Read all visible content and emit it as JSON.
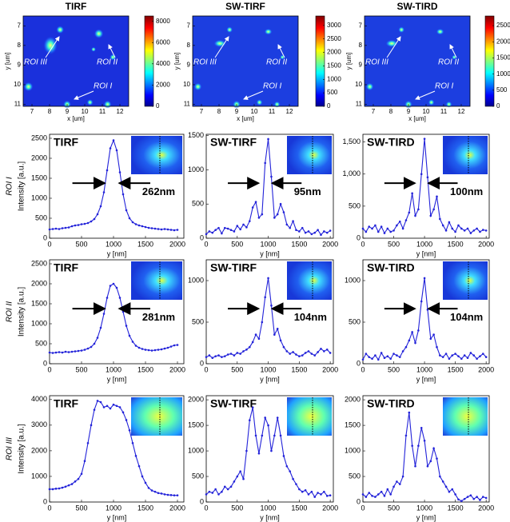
{
  "chart_data": [
    {
      "type": "image",
      "title": "TIRF",
      "xlabel": "x [um]",
      "ylabel": "y [um]",
      "xlim": [
        6.5,
        12.5
      ],
      "xticks": [
        7,
        8,
        9,
        10,
        11,
        12
      ],
      "ylim": [
        6.5,
        11.1
      ],
      "yticks": [
        7,
        8,
        9,
        10,
        11
      ],
      "y_inverted": true,
      "clim": [
        0,
        8500
      ],
      "cticks": [
        0,
        2000,
        4000,
        6000,
        8000
      ],
      "annotations": [
        "ROI III",
        "ROI II",
        "ROI I"
      ]
    },
    {
      "type": "image",
      "title": "SW-TIRF",
      "xlabel": "x [um]",
      "ylabel": "y [um]",
      "xlim": [
        6.5,
        12.5
      ],
      "xticks": [
        7,
        8,
        9,
        10,
        11,
        12
      ],
      "ylim": [
        6.5,
        11.1
      ],
      "yticks": [
        7,
        8,
        9,
        10,
        11
      ],
      "y_inverted": true,
      "clim": [
        0,
        3350
      ],
      "cticks": [
        0,
        500,
        1000,
        1500,
        2000,
        2500,
        3000
      ],
      "annotations": [
        "ROI III",
        "ROI II",
        "ROI I"
      ]
    },
    {
      "type": "image",
      "title": "SW-TIRD",
      "xlabel": "x [um]",
      "ylabel": "y [um]",
      "xlim": [
        6.5,
        12.5
      ],
      "xticks": [
        7,
        8,
        9,
        10,
        11,
        12
      ],
      "ylim": [
        6.5,
        11.1
      ],
      "yticks": [
        7,
        8,
        9,
        10,
        11
      ],
      "y_inverted": true,
      "clim": [
        0,
        2800
      ],
      "cticks": [
        0,
        500,
        1000,
        1500,
        2000,
        2500
      ],
      "annotations": [
        "ROI III",
        "ROI II",
        "ROI I"
      ]
    },
    {
      "type": "line",
      "title": "TIRF",
      "row_label": "ROI I",
      "ylabel": "Intensity [a.u.]",
      "xlabel": "y [nm]",
      "fwhm_label": "262nm",
      "x": [
        0,
        50,
        100,
        150,
        200,
        250,
        300,
        350,
        400,
        450,
        500,
        550,
        600,
        650,
        700,
        750,
        800,
        850,
        900,
        950,
        1000,
        1050,
        1100,
        1150,
        1200,
        1250,
        1300,
        1350,
        1400,
        1450,
        1500,
        1550,
        1600,
        1650,
        1700,
        1750,
        1800,
        1850,
        1900,
        1950,
        2000
      ],
      "series": [
        {
          "color": "#2323d9",
          "values": [
            220,
            230,
            240,
            230,
            250,
            260,
            270,
            300,
            320,
            330,
            350,
            360,
            380,
            420,
            480,
            600,
            800,
            1150,
            1700,
            2250,
            2450,
            2200,
            1650,
            1100,
            700,
            500,
            400,
            350,
            320,
            300,
            280,
            260,
            250,
            240,
            230,
            220,
            230,
            220,
            210,
            200,
            210
          ]
        }
      ],
      "xlim": [
        0,
        2100
      ],
      "xticks": [
        0,
        500,
        1000,
        1500,
        2000
      ],
      "ylim": [
        0,
        2600
      ],
      "yticks": [
        0,
        500,
        1000,
        1500,
        2000,
        2500
      ]
    },
    {
      "type": "line",
      "title": "SW-TIRF",
      "xlabel": "y [nm]",
      "fwhm_label": "95nm",
      "x": [
        0,
        50,
        100,
        150,
        200,
        250,
        300,
        350,
        400,
        450,
        500,
        550,
        600,
        650,
        700,
        750,
        800,
        850,
        900,
        950,
        1000,
        1050,
        1100,
        1150,
        1200,
        1250,
        1300,
        1350,
        1400,
        1450,
        1500,
        1550,
        1600,
        1650,
        1700,
        1750,
        1800,
        1850,
        1900,
        1950,
        2000
      ],
      "series": [
        {
          "color": "#2323d9",
          "values": [
            60,
            100,
            80,
            120,
            150,
            70,
            150,
            140,
            120,
            100,
            180,
            130,
            200,
            160,
            250,
            450,
            530,
            300,
            350,
            1100,
            1450,
            900,
            300,
            350,
            500,
            380,
            200,
            150,
            250,
            120,
            100,
            150,
            80,
            100,
            60,
            80,
            120,
            50,
            100,
            80,
            110
          ]
        }
      ],
      "xlim": [
        0,
        2050
      ],
      "xticks": [
        0,
        500,
        1000,
        1500,
        2000
      ],
      "ylim": [
        0,
        1520
      ],
      "yticks": [
        0,
        500,
        1000,
        1500
      ]
    },
    {
      "type": "line",
      "title": "SW-TIRD",
      "xlabel": "y [nm]",
      "fwhm_label": "100nm",
      "x": [
        0,
        50,
        100,
        150,
        200,
        250,
        300,
        350,
        400,
        450,
        500,
        550,
        600,
        650,
        700,
        750,
        800,
        850,
        900,
        950,
        1000,
        1050,
        1100,
        1150,
        1200,
        1250,
        1300,
        1350,
        1400,
        1450,
        1500,
        1550,
        1600,
        1650,
        1700,
        1750,
        1800,
        1850,
        1900,
        1950,
        2000
      ],
      "series": [
        {
          "color": "#2323d9",
          "values": [
            150,
            100,
            180,
            150,
            200,
            100,
            180,
            80,
            150,
            100,
            120,
            200,
            260,
            150,
            280,
            400,
            700,
            350,
            450,
            1000,
            1550,
            950,
            350,
            450,
            650,
            300,
            200,
            120,
            250,
            150,
            100,
            200,
            150,
            120,
            150,
            80,
            120,
            150,
            100,
            130,
            120
          ]
        }
      ],
      "xlim": [
        0,
        2050
      ],
      "xticks": [
        0,
        500,
        1000,
        1500,
        2000
      ],
      "ylim": [
        0,
        1620
      ],
      "yticks": [
        0,
        500,
        {
          "value": 1000,
          "label": "1,000"
        },
        {
          "value": 1500,
          "label": "1,500"
        }
      ]
    },
    {
      "type": "line",
      "title": "TIRF",
      "row_label": "ROI II",
      "ylabel": "Intensity [a.u.]",
      "xlabel": "y [nm]",
      "fwhm_label": "281nm",
      "x": [
        0,
        50,
        100,
        150,
        200,
        250,
        300,
        350,
        400,
        450,
        500,
        550,
        600,
        650,
        700,
        750,
        800,
        850,
        900,
        950,
        1000,
        1050,
        1100,
        1150,
        1200,
        1250,
        1300,
        1350,
        1400,
        1450,
        1500,
        1550,
        1600,
        1650,
        1700,
        1750,
        1800,
        1850,
        1900,
        1950,
        2000
      ],
      "series": [
        {
          "color": "#2323d9",
          "values": [
            280,
            270,
            280,
            290,
            280,
            300,
            290,
            300,
            310,
            320,
            330,
            350,
            380,
            420,
            500,
            650,
            900,
            1250,
            1650,
            1950,
            2000,
            1900,
            1650,
            1300,
            950,
            700,
            550,
            450,
            400,
            370,
            350,
            340,
            330,
            340,
            350,
            360,
            380,
            400,
            430,
            460,
            470
          ]
        }
      ],
      "xlim": [
        0,
        2100
      ],
      "xticks": [
        0,
        500,
        1000,
        1500,
        2000
      ],
      "ylim": [
        0,
        2600
      ],
      "yticks": [
        0,
        500,
        1000,
        1500,
        2000,
        2500
      ]
    },
    {
      "type": "line",
      "title": "SW-TIRF",
      "xlabel": "y [nm]",
      "fwhm_label": "104nm",
      "x": [
        0,
        50,
        100,
        150,
        200,
        250,
        300,
        350,
        400,
        450,
        500,
        550,
        600,
        650,
        700,
        750,
        800,
        850,
        900,
        950,
        1000,
        1050,
        1100,
        1150,
        1200,
        1250,
        1300,
        1350,
        1400,
        1450,
        1500,
        1550,
        1600,
        1650,
        1700,
        1750,
        1800,
        1850,
        1900,
        1950,
        2000
      ],
      "series": [
        {
          "color": "#2323d9",
          "values": [
            80,
            100,
            70,
            90,
            100,
            80,
            90,
            110,
            120,
            100,
            130,
            120,
            150,
            170,
            200,
            260,
            350,
            300,
            500,
            800,
            1030,
            700,
            350,
            420,
            280,
            200,
            150,
            120,
            140,
            110,
            90,
            100,
            130,
            150,
            120,
            100,
            140,
            180,
            150,
            170,
            130
          ]
        }
      ],
      "xlim": [
        0,
        2050
      ],
      "xticks": [
        0,
        500,
        1000,
        1500,
        2000
      ],
      "ylim": [
        0,
        1250
      ],
      "yticks": [
        0,
        500,
        1000
      ]
    },
    {
      "type": "line",
      "title": "SW-TIRD",
      "xlabel": "y [nm]",
      "fwhm_label": "104nm",
      "x": [
        0,
        50,
        100,
        150,
        200,
        250,
        300,
        350,
        400,
        450,
        500,
        550,
        600,
        650,
        700,
        750,
        800,
        850,
        900,
        950,
        1000,
        1050,
        1100,
        1150,
        1200,
        1250,
        1300,
        1350,
        1400,
        1450,
        1500,
        1550,
        1600,
        1650,
        1700,
        1750,
        1800,
        1850,
        1900,
        1950,
        2000
      ],
      "series": [
        {
          "color": "#2323d9",
          "values": [
            50,
            120,
            80,
            60,
            100,
            50,
            130,
            70,
            90,
            60,
            120,
            100,
            80,
            150,
            200,
            280,
            380,
            250,
            400,
            750,
            1030,
            650,
            300,
            350,
            200,
            100,
            80,
            120,
            60,
            100,
            120,
            90,
            60,
            100,
            70,
            130,
            100,
            60,
            90,
            120,
            80
          ]
        }
      ],
      "xlim": [
        0,
        2050
      ],
      "xticks": [
        0,
        500,
        1000,
        1500,
        2000
      ],
      "ylim": [
        0,
        1250
      ],
      "yticks": [
        0,
        500,
        1000
      ]
    },
    {
      "type": "line",
      "title": "TIRF",
      "row_label": "ROI III",
      "ylabel": "Intensity [a.u.]",
      "xlabel": "y [nm]",
      "x": [
        0,
        50,
        100,
        150,
        200,
        250,
        300,
        350,
        400,
        450,
        500,
        550,
        600,
        650,
        700,
        750,
        800,
        850,
        900,
        950,
        1000,
        1050,
        1100,
        1150,
        1200,
        1250,
        1300,
        1350,
        1400,
        1450,
        1500,
        1550,
        1600,
        1650,
        1700,
        1750,
        1800,
        1850,
        1900,
        1950,
        2000
      ],
      "series": [
        {
          "color": "#2323d9",
          "values": [
            500,
            500,
            520,
            530,
            560,
            600,
            650,
            700,
            800,
            900,
            1100,
            1600,
            2300,
            3000,
            3600,
            3950,
            3900,
            3700,
            3750,
            3650,
            3800,
            3750,
            3700,
            3500,
            3200,
            2800,
            2300,
            1800,
            1400,
            1000,
            750,
            550,
            450,
            400,
            350,
            330,
            300,
            280,
            270,
            260,
            260
          ]
        }
      ],
      "xlim": [
        0,
        2100
      ],
      "xticks": [
        0,
        500,
        1000,
        1500,
        2000
      ],
      "ylim": [
        0,
        4150
      ],
      "yticks": [
        0,
        1000,
        2000,
        3000,
        4000
      ]
    },
    {
      "type": "line",
      "title": "SW-TIRF",
      "xlabel": "y [nm]",
      "x": [
        0,
        50,
        100,
        150,
        200,
        250,
        300,
        350,
        400,
        450,
        500,
        550,
        600,
        650,
        700,
        750,
        800,
        850,
        900,
        950,
        1000,
        1050,
        1100,
        1150,
        1200,
        1250,
        1300,
        1350,
        1400,
        1450,
        1500,
        1550,
        1600,
        1650,
        1700,
        1750,
        1800,
        1850,
        1900,
        1950,
        2000
      ],
      "series": [
        {
          "color": "#2323d9",
          "values": [
            150,
            200,
            180,
            250,
            150,
            200,
            300,
            250,
            300,
            400,
            500,
            600,
            450,
            1000,
            1600,
            1850,
            1300,
            950,
            1300,
            1650,
            1500,
            1000,
            1300,
            1650,
            1300,
            900,
            700,
            600,
            450,
            350,
            250,
            200,
            230,
            150,
            200,
            100,
            180,
            150,
            200,
            120,
            130
          ]
        }
      ],
      "xlim": [
        0,
        2050
      ],
      "xticks": [
        0,
        500,
        1000,
        1500,
        2000
      ],
      "ylim": [
        0,
        2080
      ],
      "yticks": [
        0,
        500,
        1000,
        1500,
        2000
      ]
    },
    {
      "type": "line",
      "title": "SW-TIRD",
      "xlabel": "y [nm]",
      "x": [
        0,
        50,
        100,
        150,
        200,
        250,
        300,
        350,
        400,
        450,
        500,
        550,
        600,
        650,
        700,
        750,
        800,
        850,
        900,
        950,
        1000,
        1050,
        1100,
        1150,
        1200,
        1250,
        1300,
        1350,
        1400,
        1450,
        1500,
        1550,
        1600,
        1650,
        1700,
        1750,
        1800,
        1850,
        1900,
        1950,
        2000
      ],
      "series": [
        {
          "color": "#2323d9",
          "values": [
            150,
            100,
            180,
            120,
            100,
            150,
            200,
            120,
            250,
            150,
            300,
            400,
            350,
            500,
            1300,
            1750,
            1100,
            700,
            1100,
            1450,
            1200,
            700,
            800,
            1050,
            850,
            500,
            400,
            300,
            200,
            250,
            150,
            50,
            20,
            60,
            100,
            130,
            60,
            100,
            40,
            100,
            80
          ]
        }
      ],
      "xlim": [
        0,
        2050
      ],
      "xticks": [
        0,
        500,
        1000,
        1500,
        2000
      ],
      "ylim": [
        0,
        2080
      ],
      "yticks": [
        0,
        500,
        1000,
        1500,
        2000
      ]
    }
  ]
}
